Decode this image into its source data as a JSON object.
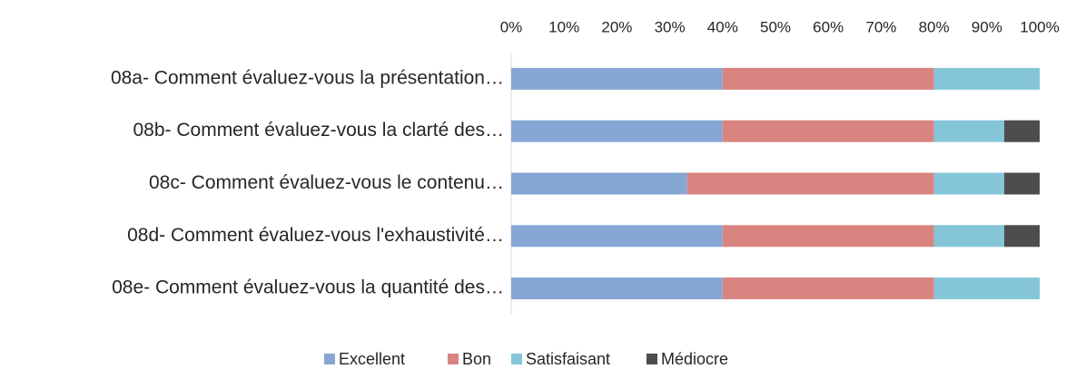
{
  "chart_data": {
    "type": "stacked_bar_horizontal",
    "categories": [
      "08a- Comment évaluez-vous la présentation…",
      "08b- Comment évaluez-vous la clarté des…",
      "08c- Comment évaluez-vous le contenu…",
      "08d- Comment évaluez-vous l'exhaustivité…",
      "08e- Comment évaluez-vous la quantité des…"
    ],
    "series": [
      {
        "name": "Excellent",
        "color": "#86a7d4",
        "values": [
          40,
          40,
          33.3,
          40,
          40
        ]
      },
      {
        "name": "Bon",
        "color": "#d98481",
        "values": [
          40,
          40,
          46.7,
          40,
          40
        ]
      },
      {
        "name": "Satisfaisant",
        "color": "#84c6d8",
        "values": [
          20,
          13.3,
          13.3,
          13.3,
          20
        ]
      },
      {
        "name": "Médiocre",
        "color": "#4d4d4d",
        "values": [
          0,
          6.7,
          6.7,
          6.7,
          0
        ]
      }
    ],
    "xlim": [
      0,
      100
    ],
    "xticks": [
      {
        "value": 0,
        "label": "0%"
      },
      {
        "value": 10,
        "label": "10%"
      },
      {
        "value": 20,
        "label": "20%"
      },
      {
        "value": 30,
        "label": "30%"
      },
      {
        "value": 40,
        "label": "40%"
      },
      {
        "value": 50,
        "label": "50%"
      },
      {
        "value": 60,
        "label": "60%"
      },
      {
        "value": 70,
        "label": "70%"
      },
      {
        "value": 80,
        "label": "80%"
      },
      {
        "value": 90,
        "label": "90%"
      },
      {
        "value": 100,
        "label": "100%"
      }
    ],
    "legend": "bottom"
  }
}
